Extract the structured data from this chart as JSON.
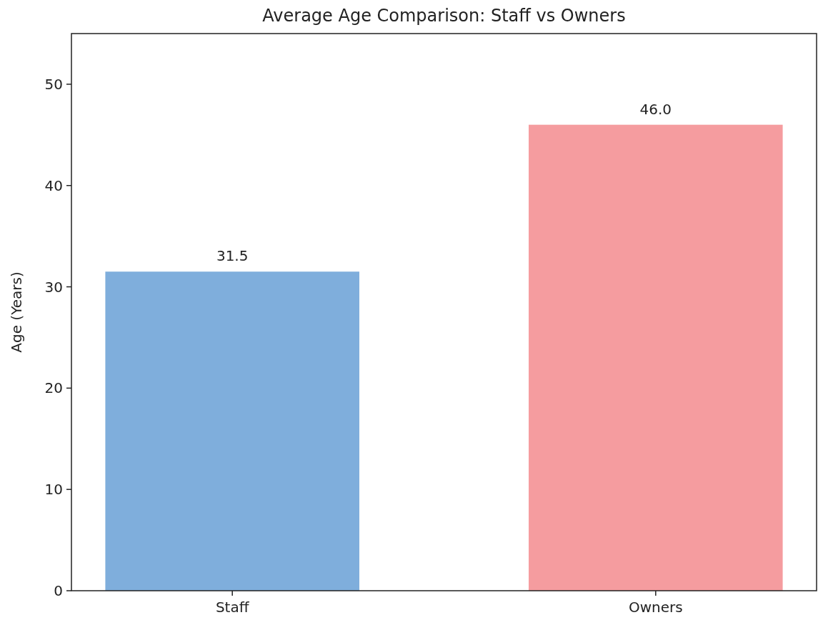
{
  "chart_data": {
    "type": "bar",
    "title": "Average Age Comparison: Staff vs Owners",
    "ylabel": "Age (Years)",
    "categories": [
      "Staff",
      "Owners"
    ],
    "values": [
      31.5,
      46.0
    ],
    "colors": [
      "#7faedc",
      "#f59c9f"
    ],
    "value_labels": [
      "31.5",
      "46.0"
    ],
    "ylim": [
      0,
      55
    ],
    "yticks": [
      0,
      10,
      20,
      30,
      40,
      50
    ],
    "grid": false
  }
}
